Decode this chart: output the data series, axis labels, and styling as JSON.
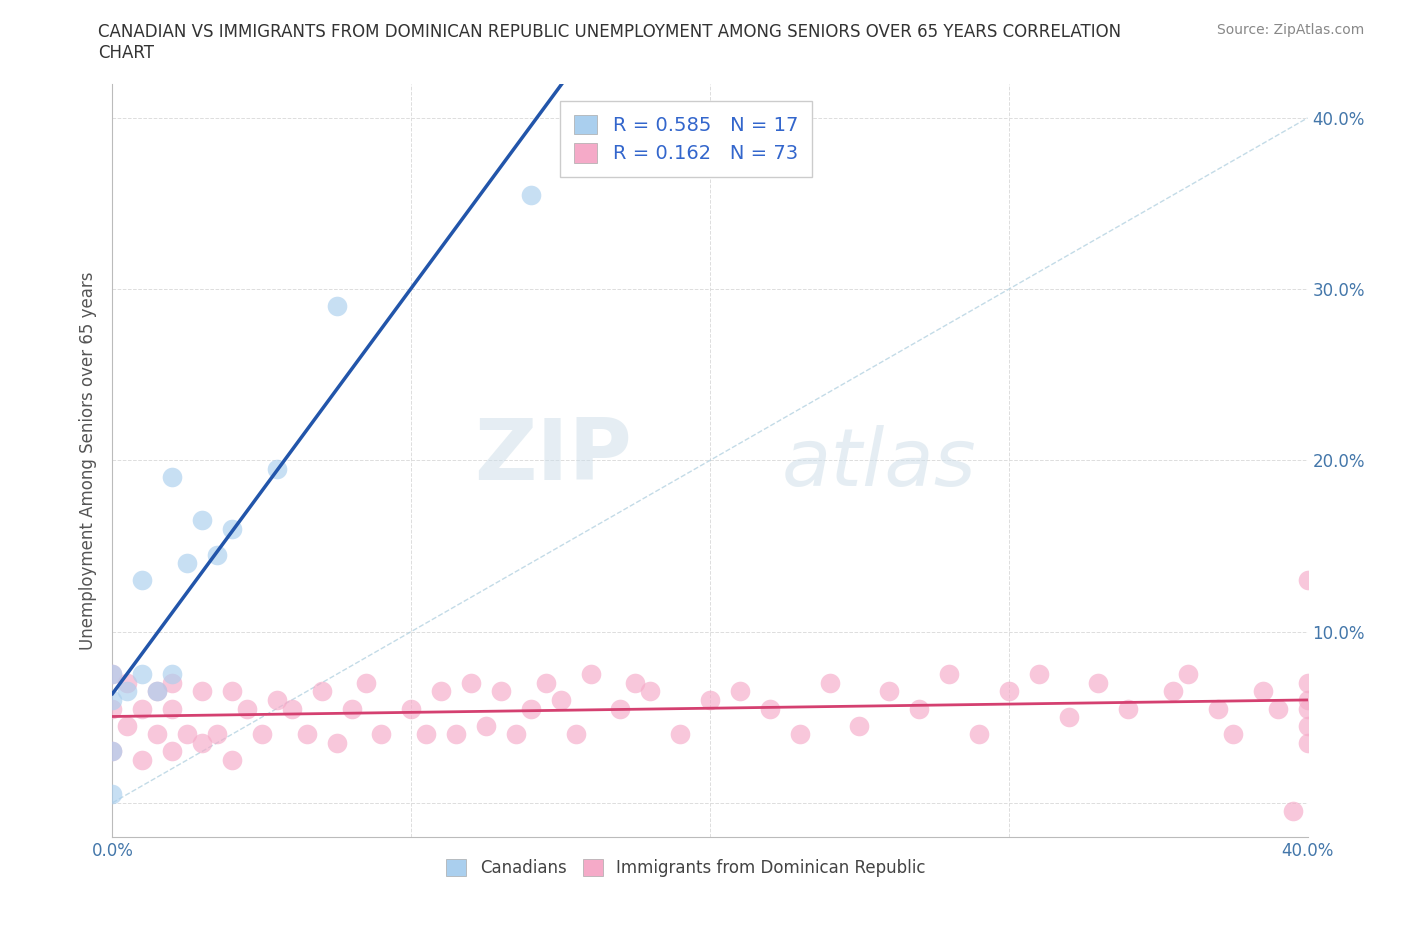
{
  "title": "CANADIAN VS IMMIGRANTS FROM DOMINICAN REPUBLIC UNEMPLOYMENT AMONG SENIORS OVER 65 YEARS CORRELATION\nCHART",
  "source": "Source: ZipAtlas.com",
  "ylabel": "Unemployment Among Seniors over 65 years",
  "xlim": [
    0.0,
    0.4
  ],
  "ylim": [
    -0.02,
    0.42
  ],
  "xtick_vals": [
    0.0,
    0.1,
    0.2,
    0.3,
    0.4
  ],
  "ytick_vals": [
    0.0,
    0.1,
    0.2,
    0.3,
    0.4
  ],
  "xticklabels": [
    "0.0%",
    "",
    "",
    "",
    "40.0%"
  ],
  "canadians_x": [
    0.0,
    0.0,
    0.0,
    0.0,
    0.005,
    0.01,
    0.01,
    0.015,
    0.02,
    0.02,
    0.025,
    0.03,
    0.035,
    0.04,
    0.055,
    0.075,
    0.14
  ],
  "canadians_y": [
    0.005,
    0.03,
    0.06,
    0.075,
    0.065,
    0.075,
    0.13,
    0.065,
    0.075,
    0.19,
    0.14,
    0.165,
    0.145,
    0.16,
    0.195,
    0.29,
    0.355
  ],
  "dominican_x": [
    0.0,
    0.0,
    0.0,
    0.005,
    0.005,
    0.01,
    0.01,
    0.015,
    0.015,
    0.02,
    0.02,
    0.02,
    0.025,
    0.03,
    0.03,
    0.035,
    0.04,
    0.04,
    0.045,
    0.05,
    0.055,
    0.06,
    0.065,
    0.07,
    0.075,
    0.08,
    0.085,
    0.09,
    0.1,
    0.105,
    0.11,
    0.115,
    0.12,
    0.125,
    0.13,
    0.135,
    0.14,
    0.145,
    0.15,
    0.155,
    0.16,
    0.17,
    0.175,
    0.18,
    0.19,
    0.2,
    0.21,
    0.22,
    0.23,
    0.24,
    0.25,
    0.26,
    0.27,
    0.28,
    0.29,
    0.3,
    0.31,
    0.32,
    0.33,
    0.34,
    0.355,
    0.36,
    0.37,
    0.375,
    0.385,
    0.39,
    0.395,
    0.4,
    0.4,
    0.4,
    0.4,
    0.4,
    0.4
  ],
  "dominican_y": [
    0.03,
    0.055,
    0.075,
    0.045,
    0.07,
    0.025,
    0.055,
    0.04,
    0.065,
    0.03,
    0.055,
    0.07,
    0.04,
    0.035,
    0.065,
    0.04,
    0.025,
    0.065,
    0.055,
    0.04,
    0.06,
    0.055,
    0.04,
    0.065,
    0.035,
    0.055,
    0.07,
    0.04,
    0.055,
    0.04,
    0.065,
    0.04,
    0.07,
    0.045,
    0.065,
    0.04,
    0.055,
    0.07,
    0.06,
    0.04,
    0.075,
    0.055,
    0.07,
    0.065,
    0.04,
    0.06,
    0.065,
    0.055,
    0.04,
    0.07,
    0.045,
    0.065,
    0.055,
    0.075,
    0.04,
    0.065,
    0.075,
    0.05,
    0.07,
    0.055,
    0.065,
    0.075,
    0.055,
    0.04,
    0.065,
    0.055,
    -0.005,
    0.045,
    0.06,
    0.035,
    0.055,
    0.13,
    0.07
  ],
  "R_canadians": 0.585,
  "N_canadians": 17,
  "R_dominican": 0.162,
  "N_dominican": 73,
  "color_canadians": "#aacfee",
  "color_dominican": "#f5aac8",
  "line_color_canadians": "#2255aa",
  "line_color_dominican": "#d44070",
  "watermark_zip": "ZIP",
  "watermark_atlas": "atlas",
  "background_color": "#ffffff"
}
